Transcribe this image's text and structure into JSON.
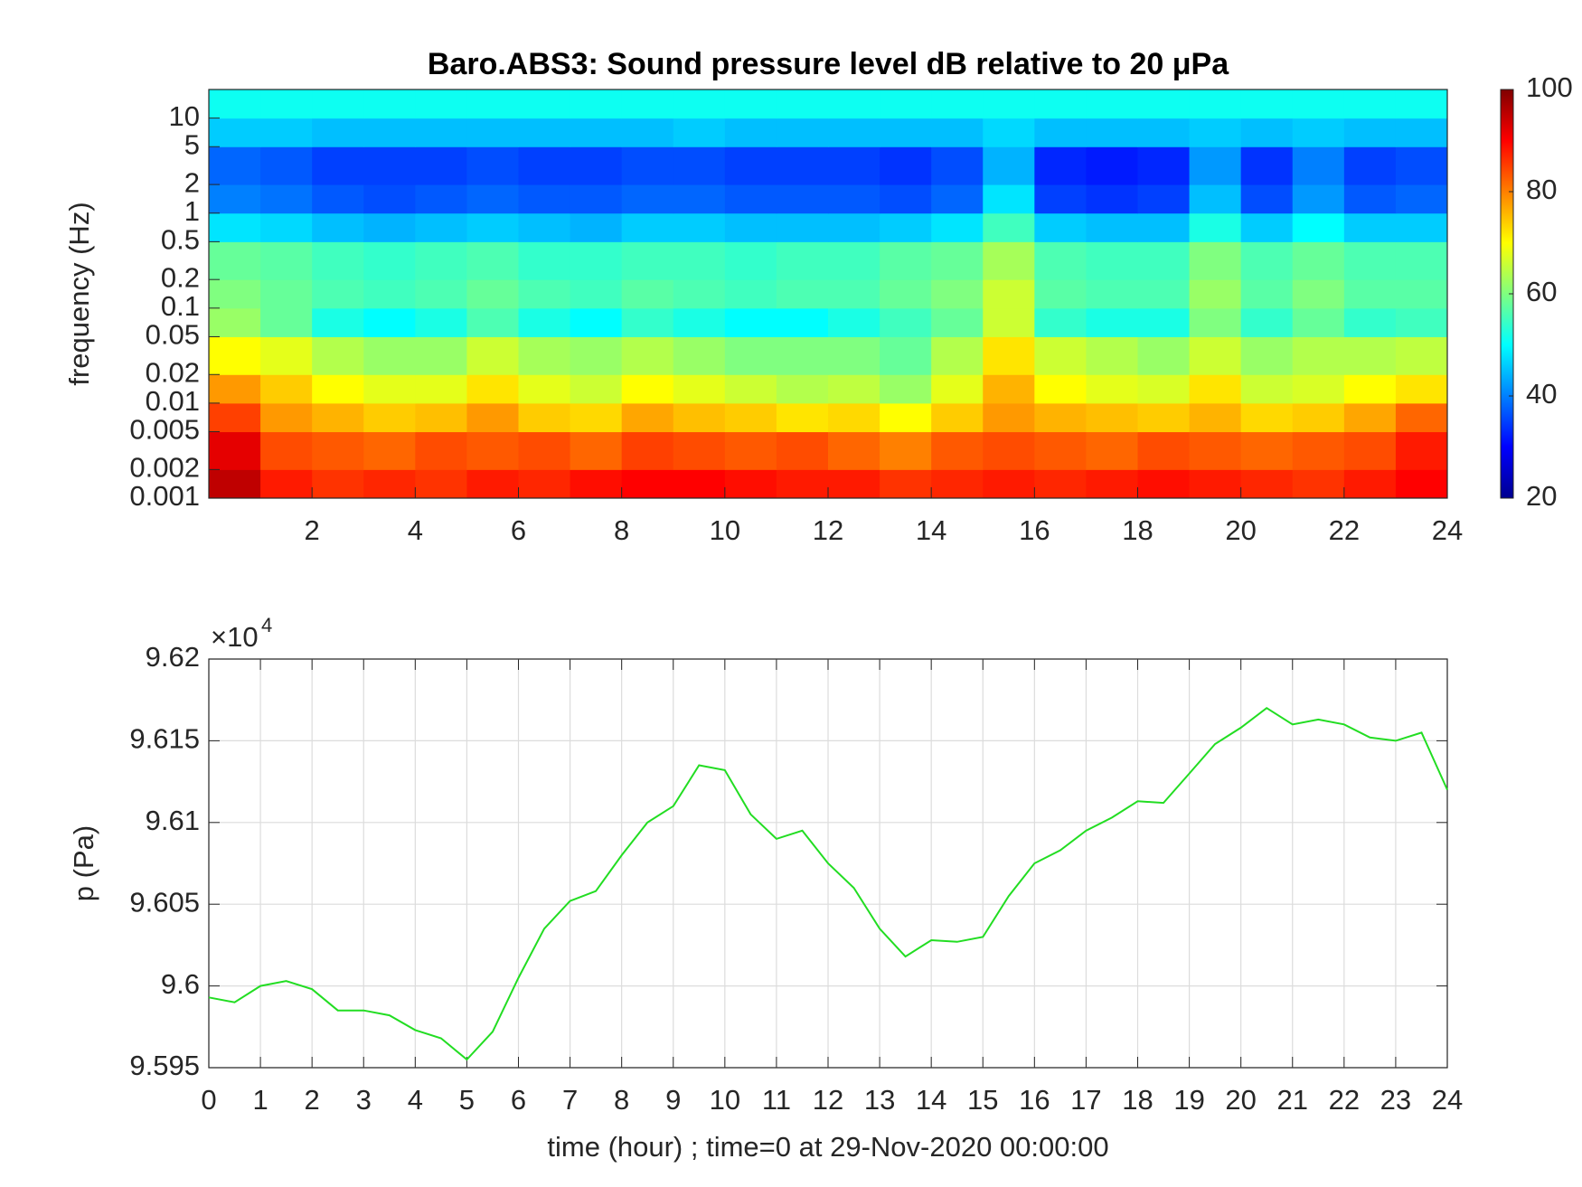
{
  "chart_data": [
    {
      "type": "heatmap",
      "title": "Baro.ABS3: Sound pressure level dB relative to 20 μPa",
      "ylabel": "frequency (Hz)",
      "colormap": "jet",
      "log_y": true,
      "xlim": [
        0,
        24
      ],
      "ylim": [
        0.001,
        20
      ],
      "xticks": [
        2,
        4,
        6,
        8,
        10,
        12,
        14,
        16,
        18,
        20,
        22,
        24
      ],
      "yticks": [
        0.001,
        0.002,
        0.005,
        0.01,
        0.02,
        0.05,
        0.1,
        0.2,
        0.5,
        1,
        2,
        5,
        10
      ],
      "clim": [
        20,
        100
      ],
      "cticks": [
        20,
        40,
        60,
        80,
        100
      ],
      "x_edges": [
        0,
        1,
        2,
        3,
        4,
        5,
        6,
        7,
        8,
        9,
        10,
        11,
        12,
        13,
        14,
        15,
        16,
        17,
        18,
        19,
        20,
        21,
        22,
        23,
        24
      ],
      "y_edges": [
        0.001,
        0.002,
        0.005,
        0.01,
        0.02,
        0.05,
        0.1,
        0.2,
        0.5,
        1,
        2,
        5,
        10,
        20
      ],
      "values": [
        [
          95,
          88,
          86,
          87,
          86,
          88,
          87,
          89,
          90,
          90,
          89,
          88,
          88,
          86,
          87,
          88,
          87,
          88,
          89,
          88,
          87,
          86,
          88,
          90
        ],
        [
          92,
          84,
          83,
          82,
          84,
          83,
          84,
          82,
          85,
          84,
          83,
          84,
          82,
          80,
          83,
          84,
          83,
          82,
          84,
          83,
          82,
          83,
          84,
          88
        ],
        [
          85,
          78,
          76,
          74,
          75,
          78,
          74,
          73,
          77,
          75,
          74,
          72,
          73,
          70,
          74,
          78,
          76,
          75,
          74,
          76,
          73,
          74,
          77,
          82
        ],
        [
          78,
          74,
          70,
          68,
          68,
          72,
          68,
          66,
          70,
          68,
          66,
          64,
          65,
          62,
          68,
          76,
          70,
          68,
          67,
          72,
          66,
          67,
          70,
          72
        ],
        [
          70,
          68,
          64,
          62,
          62,
          66,
          63,
          62,
          64,
          62,
          60,
          60,
          60,
          58,
          64,
          72,
          66,
          64,
          62,
          66,
          62,
          64,
          64,
          65
        ],
        [
          62,
          58,
          52,
          50,
          52,
          56,
          52,
          50,
          54,
          52,
          50,
          50,
          52,
          55,
          58,
          66,
          54,
          52,
          52,
          60,
          54,
          58,
          54,
          55
        ],
        [
          60,
          58,
          56,
          55,
          56,
          58,
          56,
          55,
          57,
          56,
          55,
          56,
          56,
          58,
          60,
          66,
          57,
          56,
          56,
          62,
          57,
          60,
          57,
          57
        ],
        [
          58,
          57,
          55,
          54,
          55,
          56,
          54,
          54,
          55,
          55,
          54,
          55,
          55,
          57,
          58,
          63,
          56,
          55,
          55,
          60,
          56,
          58,
          56,
          56
        ],
        [
          48,
          47,
          45,
          44,
          45,
          46,
          45,
          44,
          46,
          46,
          45,
          45,
          45,
          46,
          48,
          55,
          46,
          45,
          45,
          52,
          46,
          50,
          46,
          46
        ],
        [
          40,
          39,
          37,
          36,
          37,
          38,
          37,
          37,
          38,
          38,
          37,
          37,
          37,
          36,
          38,
          48,
          35,
          34,
          35,
          45,
          36,
          42,
          37,
          38
        ],
        [
          38,
          37,
          35,
          35,
          35,
          36,
          35,
          35,
          36,
          36,
          35,
          35,
          35,
          34,
          36,
          44,
          33,
          32,
          33,
          42,
          34,
          40,
          35,
          36
        ],
        [
          46,
          46,
          45,
          45,
          45,
          45,
          45,
          45,
          45,
          46,
          45,
          45,
          45,
          45,
          45,
          47,
          45,
          45,
          45,
          46,
          45,
          46,
          45,
          45
        ],
        [
          51,
          51,
          51,
          51,
          51,
          51,
          51,
          51,
          51,
          51,
          51,
          51,
          51,
          51,
          51,
          51,
          51,
          51,
          51,
          51,
          51,
          51,
          51,
          51
        ]
      ]
    },
    {
      "type": "line",
      "ylabel": "p (Pa)",
      "xlabel": "time (hour) ; time=0 at 29-Nov-2020 00:00:00",
      "y_multiplier": {
        "base": "×10",
        "exponent": "4"
      },
      "color": "#22dd22",
      "grid": true,
      "xlim": [
        0,
        24
      ],
      "ylim": [
        95950,
        96200
      ],
      "xticks": [
        0,
        1,
        2,
        3,
        4,
        5,
        6,
        7,
        8,
        9,
        10,
        11,
        12,
        13,
        14,
        15,
        16,
        17,
        18,
        19,
        20,
        21,
        22,
        23,
        24
      ],
      "yticks": [
        {
          "value": 95950,
          "label": "9.595"
        },
        {
          "value": 96000,
          "label": "9.6"
        },
        {
          "value": 96050,
          "label": "9.605"
        },
        {
          "value": 96100,
          "label": "9.61"
        },
        {
          "value": 96150,
          "label": "9.615"
        },
        {
          "value": 96200,
          "label": "9.62"
        }
      ],
      "x": [
        0,
        0.5,
        1,
        1.5,
        2,
        2.5,
        3,
        3.5,
        4,
        4.5,
        5,
        5.5,
        6,
        6.5,
        7,
        7.5,
        8,
        8.5,
        9,
        9.5,
        10,
        10.5,
        11,
        11.5,
        12,
        12.5,
        13,
        13.5,
        14,
        14.5,
        15,
        15.5,
        16,
        16.5,
        17,
        17.5,
        18,
        18.5,
        19,
        19.5,
        20,
        20.5,
        21,
        21.5,
        22,
        22.5,
        23,
        23.5,
        24
      ],
      "values": [
        95993,
        95990,
        96000,
        96003,
        95998,
        95985,
        95985,
        95982,
        95973,
        95968,
        95955,
        95972,
        96005,
        96035,
        96052,
        96058,
        96080,
        96100,
        96110,
        96135,
        96132,
        96105,
        96090,
        96095,
        96075,
        96060,
        96035,
        96018,
        96028,
        96027,
        96030,
        96055,
        96075,
        96083,
        96095,
        96103,
        96113,
        96112,
        96130,
        96148,
        96158,
        96170,
        96160,
        96163,
        96160,
        96152,
        96150,
        96155,
        96120
      ]
    }
  ]
}
